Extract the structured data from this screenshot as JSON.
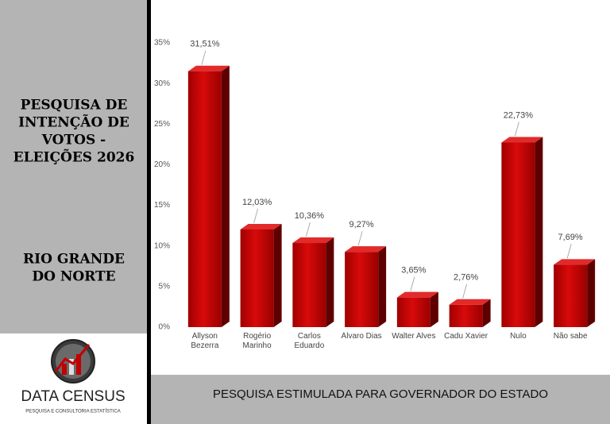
{
  "chart_data": {
    "type": "bar",
    "categories": [
      "Allyson Bezerra",
      "Rogério Marinho",
      "Carlos Eduardo",
      "Álvaro Dias",
      "Walter Alves",
      "Cadu Xavier",
      "Nulo",
      "Não sabe"
    ],
    "values": [
      31.51,
      12.03,
      10.36,
      9.27,
      3.65,
      2.76,
      22.73,
      7.69
    ],
    "value_labels": [
      "31,51%",
      "12,03%",
      "10,36%",
      "9,27%",
      "3,65%",
      "2,76%",
      "22,73%",
      "7,69%"
    ],
    "color": "#c00000",
    "ylim": [
      0,
      35
    ],
    "yticks": [
      {
        "value": 0,
        "label": "0%"
      },
      {
        "value": 5,
        "label": "5%"
      },
      {
        "value": 10,
        "label": "10%"
      },
      {
        "value": 15,
        "label": "15%"
      },
      {
        "value": 20,
        "label": "20%"
      },
      {
        "value": 25,
        "label": "25%"
      },
      {
        "value": 30,
        "label": "30%"
      },
      {
        "value": 35,
        "label": "35%"
      }
    ],
    "grid": false
  },
  "sidebar": {
    "title_lines": [
      "PESQUISA DE",
      "INTENÇÃO DE",
      "VOTOS -",
      "ELEIÇÕES 2026"
    ],
    "region_lines": [
      "RIO GRANDE",
      "DO NORTE"
    ],
    "brand": "DATA CENSUS",
    "brand_tagline": "PESQUISA E CONSULTORIA ESTATÍSTICA"
  },
  "footer": {
    "caption": "PESQUISA ESTIMULADA PARA GOVERNADOR DO ESTADO"
  }
}
